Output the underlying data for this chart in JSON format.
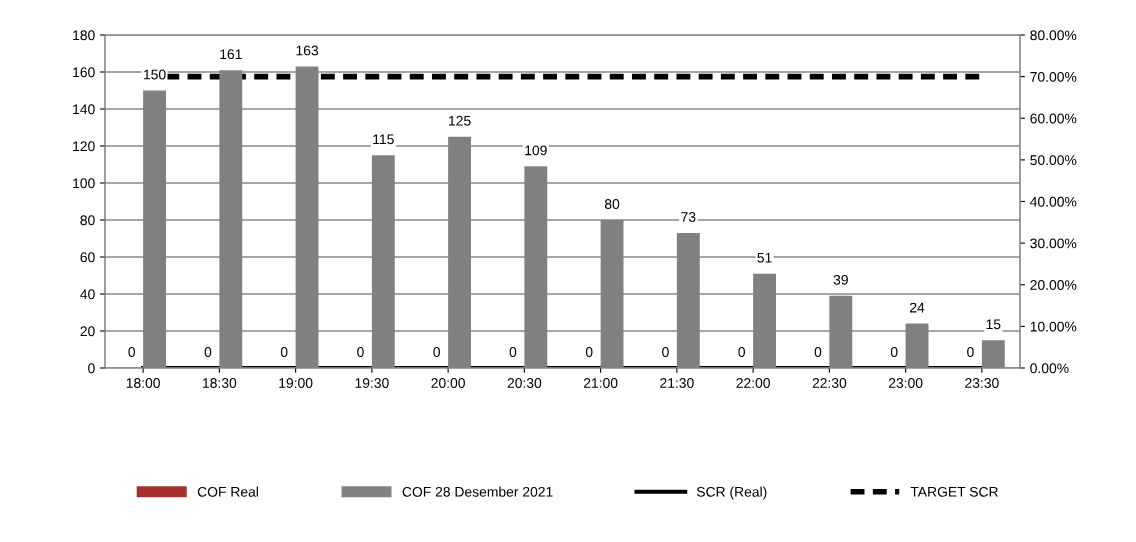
{
  "chart_data": {
    "type": "bar",
    "categories": [
      "18:00",
      "18:30",
      "19:00",
      "19:30",
      "20:00",
      "20:30",
      "21:00",
      "21:30",
      "22:00",
      "22:30",
      "23:00",
      "23:30"
    ],
    "series": [
      {
        "name": "COF Real",
        "color": "#a5302c",
        "values": [
          0,
          0,
          0,
          0,
          0,
          0,
          0,
          0,
          0,
          0,
          0,
          0
        ],
        "value_labels": [
          "0",
          "0",
          "0",
          "0",
          "0",
          "0",
          "0",
          "0",
          "0",
          "0",
          "0",
          "0"
        ]
      },
      {
        "name": "COF 28 Desember 2021",
        "color": "#808080",
        "values": [
          150,
          161,
          163,
          115,
          125,
          109,
          80,
          73,
          51,
          39,
          24,
          15
        ],
        "value_labels": [
          "150",
          "161",
          "163",
          "115",
          "125",
          "109",
          "80",
          "73",
          "51",
          "39",
          "24",
          "15"
        ]
      },
      {
        "name": "SCR (Real)",
        "type": "line",
        "axis": "y2",
        "color": "#000000",
        "line_style": "solid",
        "values": [
          0,
          0,
          0,
          0,
          0,
          0,
          0,
          0,
          0,
          0,
          0,
          0
        ]
      },
      {
        "name": "TARGET SCR",
        "type": "line",
        "axis": "y2",
        "color": "#000000",
        "line_style": "dashed",
        "values": [
          70,
          70,
          70,
          70,
          70,
          70,
          70,
          70,
          70,
          70,
          70,
          70
        ]
      }
    ],
    "ylim": [
      0,
      180
    ],
    "yticks": [
      0,
      20,
      40,
      60,
      80,
      100,
      120,
      140,
      160,
      180
    ],
    "y2lim": [
      0,
      80
    ],
    "y2ticks": [
      {
        "value": 0,
        "label": "0.00%"
      },
      {
        "value": 10,
        "label": "10.00%"
      },
      {
        "value": 20,
        "label": "20.00%"
      },
      {
        "value": 30,
        "label": "30.00%"
      },
      {
        "value": 40,
        "label": "40.00%"
      },
      {
        "value": 50,
        "label": "50.00%"
      },
      {
        "value": 60,
        "label": "60.00%"
      },
      {
        "value": 70,
        "label": "70.00%"
      },
      {
        "value": 80,
        "label": "80.00%"
      }
    ],
    "grid": "y",
    "legend": "bottom",
    "marker": "none"
  }
}
